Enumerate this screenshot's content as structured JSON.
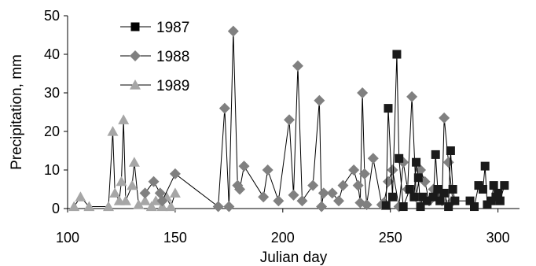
{
  "chart_data": {
    "type": "scatter",
    "title": "",
    "xlabel": "Julian day",
    "ylabel": "Precipitation, mm",
    "xlim": [
      100,
      310
    ],
    "ylim": [
      0,
      50
    ],
    "xticks": [
      100,
      150,
      200,
      250,
      300
    ],
    "yticks": [
      0,
      10,
      20,
      30,
      40,
      50
    ],
    "grid": false,
    "legend_position": "top-left",
    "series": [
      {
        "name": "1987",
        "marker": "square",
        "color": "#1a1a1a",
        "points": [
          [
            248,
            0.8
          ],
          [
            249,
            26
          ],
          [
            251,
            3
          ],
          [
            253,
            40
          ],
          [
            254,
            13
          ],
          [
            256,
            0.5
          ],
          [
            259,
            5
          ],
          [
            261,
            3
          ],
          [
            262,
            12
          ],
          [
            263,
            8
          ],
          [
            264,
            0.5
          ],
          [
            265,
            3
          ],
          [
            267,
            2
          ],
          [
            270,
            3
          ],
          [
            271,
            14
          ],
          [
            272,
            5
          ],
          [
            273,
            2
          ],
          [
            275,
            4
          ],
          [
            277,
            0.5
          ],
          [
            278,
            15
          ],
          [
            279,
            5
          ],
          [
            280,
            2
          ],
          [
            287,
            2
          ],
          [
            289,
            0.5
          ],
          [
            291,
            6
          ],
          [
            293,
            5
          ],
          [
            294,
            11
          ],
          [
            295,
            1
          ],
          [
            297,
            2
          ],
          [
            298,
            6
          ],
          [
            299,
            3
          ],
          [
            300,
            4
          ],
          [
            301,
            2
          ],
          [
            303,
            6
          ]
        ]
      },
      {
        "name": "1988",
        "marker": "diamond",
        "color": "#808080",
        "points": [
          [
            136,
            4
          ],
          [
            140,
            7
          ],
          [
            143,
            4
          ],
          [
            144,
            2
          ],
          [
            150,
            9
          ],
          [
            170,
            0.5
          ],
          [
            173,
            26
          ],
          [
            175,
            0.5
          ],
          [
            177,
            46
          ],
          [
            179,
            6
          ],
          [
            180,
            5
          ],
          [
            182,
            11
          ],
          [
            191,
            3
          ],
          [
            193,
            10
          ],
          [
            198,
            2
          ],
          [
            203,
            23
          ],
          [
            205,
            3.5
          ],
          [
            207,
            37
          ],
          [
            209,
            2
          ],
          [
            214,
            6
          ],
          [
            217,
            28
          ],
          [
            218,
            0.5
          ],
          [
            219,
            4
          ],
          [
            223,
            4
          ],
          [
            226,
            2
          ],
          [
            228,
            6
          ],
          [
            233,
            10
          ],
          [
            235,
            6
          ],
          [
            236,
            1.5
          ],
          [
            237,
            30
          ],
          [
            238,
            9
          ],
          [
            239,
            1
          ],
          [
            242,
            13
          ],
          [
            246,
            1
          ],
          [
            247,
            1.5
          ],
          [
            249,
            7
          ],
          [
            251,
            10
          ],
          [
            254,
            0.5
          ],
          [
            256,
            12
          ],
          [
            258,
            5
          ],
          [
            260,
            29
          ],
          [
            262,
            3
          ],
          [
            264,
            10
          ],
          [
            266,
            7
          ],
          [
            268,
            2
          ],
          [
            270,
            5
          ],
          [
            272,
            4
          ],
          [
            274,
            2
          ],
          [
            275,
            23.5
          ],
          [
            277,
            12
          ],
          [
            279,
            2
          ]
        ]
      },
      {
        "name": "1989",
        "marker": "triangle",
        "color": "#a6a6a6",
        "points": [
          [
            103,
            0.5
          ],
          [
            106,
            3
          ],
          [
            110,
            0.5
          ],
          [
            119,
            0.5
          ],
          [
            121,
            20
          ],
          [
            122,
            4
          ],
          [
            124,
            2
          ],
          [
            125,
            7
          ],
          [
            126,
            23
          ],
          [
            127,
            2
          ],
          [
            130,
            6
          ],
          [
            131,
            12
          ],
          [
            133,
            1
          ],
          [
            136,
            2
          ],
          [
            139,
            0.5
          ],
          [
            141,
            2
          ],
          [
            144,
            0.5
          ],
          [
            146,
            3
          ],
          [
            148,
            0.5
          ],
          [
            150,
            4
          ]
        ]
      }
    ]
  }
}
